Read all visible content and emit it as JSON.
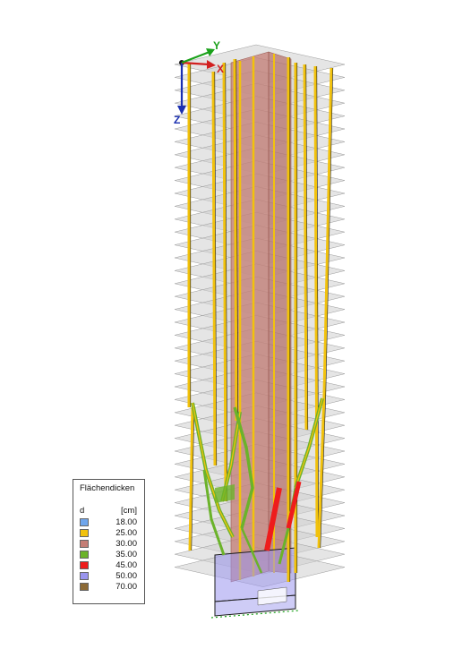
{
  "axes": {
    "x_label": "X",
    "y_label": "Y",
    "z_label": "Z"
  },
  "legend": {
    "title": "Flächendicken",
    "symbol": "d",
    "unit": "[cm]",
    "items": [
      {
        "value": "18.00",
        "color": "#6fa6ec"
      },
      {
        "value": "25.00",
        "color": "#f2c20c"
      },
      {
        "value": "30.00",
        "color": "#c47e76"
      },
      {
        "value": "35.00",
        "color": "#6bb32a"
      },
      {
        "value": "45.00",
        "color": "#ee1c1c"
      },
      {
        "value": "50.00",
        "color": "#9a95ee"
      },
      {
        "value": "70.00",
        "color": "#8c6a36"
      }
    ]
  },
  "colors": {
    "slab": "#cfcfcf",
    "slab_edge": "#9a9a9a",
    "core": "#c47e76",
    "column": "#f2c20c",
    "brace": "#6bb32a",
    "red_brace": "#ee1c1c",
    "base": "#9a95ee",
    "axis_x": "#d22020",
    "axis_y": "#1aa11a",
    "axis_z": "#1a2fb0"
  }
}
